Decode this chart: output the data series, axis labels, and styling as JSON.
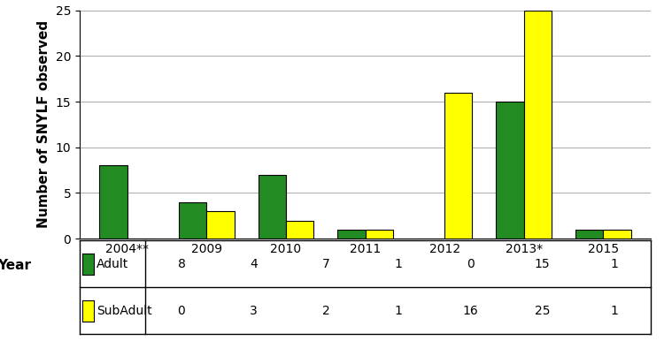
{
  "categories": [
    "2004**",
    "2009",
    "2010",
    "2011",
    "2012",
    "2013*",
    "2015"
  ],
  "adult_values": [
    8,
    4,
    7,
    1,
    0,
    15,
    1
  ],
  "subadult_values": [
    0,
    3,
    2,
    1,
    16,
    25,
    1
  ],
  "adult_color": "#228B22",
  "subadult_color": "#FFFF00",
  "bar_edge_color": "#000000",
  "ylabel": "Number of SNYLF observed",
  "xlabel_side": "Year",
  "ylim": [
    0,
    25
  ],
  "yticks": [
    0,
    5,
    10,
    15,
    20,
    25
  ],
  "bar_width": 0.35,
  "legend_adult": "Adult",
  "legend_subadult": "SubAdult",
  "grid_color": "#AAAAAA",
  "background_color": "#FFFFFF",
  "border_color": "#000000",
  "tick_fontsize": 10,
  "label_fontsize": 11
}
